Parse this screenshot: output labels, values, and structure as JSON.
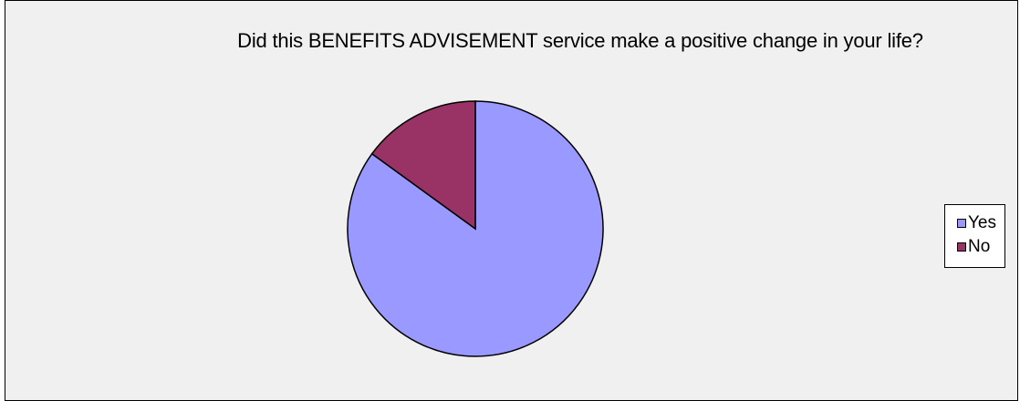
{
  "chart_data": {
    "type": "pie",
    "title": "Did this BENEFITS ADVISEMENT service make a positive change in your life?",
    "categories": [
      "Yes",
      "No"
    ],
    "values": [
      85,
      15
    ],
    "colors": [
      "#9999ff",
      "#993366"
    ],
    "legend": "right"
  }
}
